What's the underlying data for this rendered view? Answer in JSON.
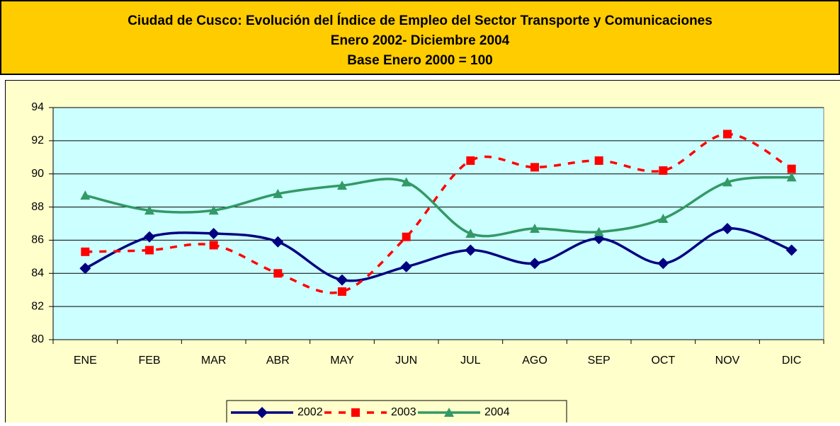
{
  "chart_data": {
    "type": "line",
    "title": [
      "Ciudad de Cusco: Evolución del Índice de Empleo del Sector Transporte y Comunicaciones",
      "Enero 2002- Diciembre 2004",
      "Base Enero 2000  =  100"
    ],
    "categories": [
      "ENE",
      "FEB",
      "MAR",
      "ABR",
      "MAY",
      "JUN",
      "JUL",
      "AGO",
      "SEP",
      "OCT",
      "NOV",
      "DIC"
    ],
    "series": [
      {
        "name": "2002",
        "color": "#000080",
        "marker": "diamond",
        "dash": false,
        "values": [
          84.3,
          86.2,
          86.4,
          85.9,
          83.6,
          84.4,
          85.4,
          84.6,
          86.1,
          84.6,
          86.7,
          85.4
        ]
      },
      {
        "name": "2003",
        "color": "#ff0000",
        "marker": "square",
        "dash": true,
        "values": [
          85.3,
          85.4,
          85.7,
          84.0,
          82.9,
          86.2,
          90.8,
          90.4,
          90.8,
          90.2,
          92.4,
          90.3
        ]
      },
      {
        "name": "2004",
        "color": "#339966",
        "marker": "triangle",
        "dash": false,
        "values": [
          88.7,
          87.8,
          87.8,
          88.8,
          89.3,
          89.5,
          86.4,
          86.7,
          86.5,
          87.3,
          89.5,
          89.8
        ]
      }
    ],
    "ylim": [
      80,
      94
    ],
    "yticks": [
      80,
      82,
      84,
      86,
      88,
      90,
      92,
      94
    ],
    "grid": true,
    "smooth": true,
    "legend": "bottom"
  }
}
